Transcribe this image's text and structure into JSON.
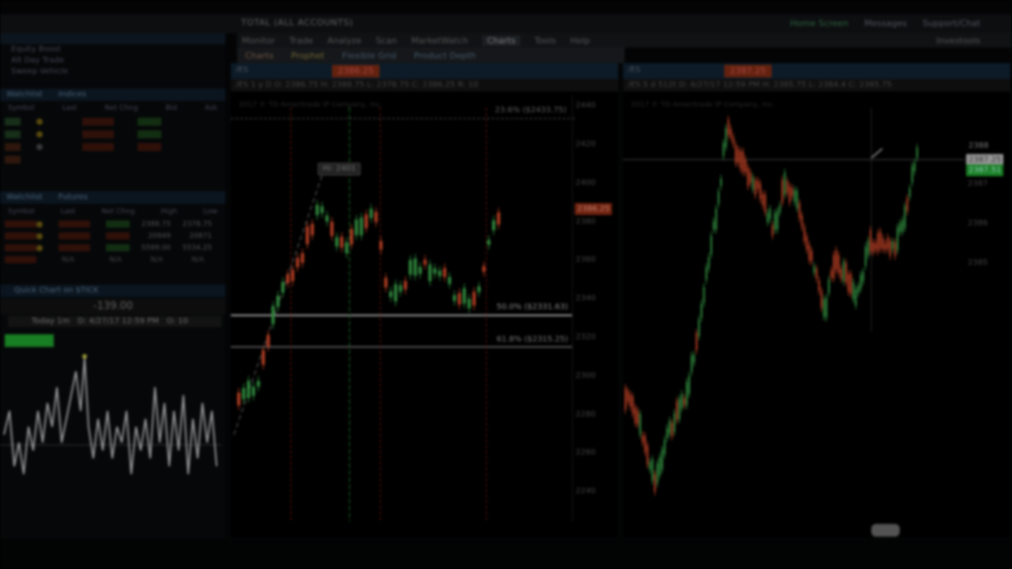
{
  "topbar": {
    "account": "TOTAL (ALL ACCOUNTS)",
    "home": "Home Screen",
    "messages": "Messages",
    "support": "Support/Chat"
  },
  "mainnav": {
    "items": [
      "Monitor",
      "Trade",
      "Analyze",
      "Scan",
      "MarketWatch",
      "Charts",
      "Tools",
      "Help"
    ],
    "active": "Charts",
    "right": "Investools"
  },
  "subnav": {
    "items": [
      "Charts",
      "Prophet",
      "Flexible Grid",
      "Product Depth"
    ]
  },
  "leftpanel": {
    "top_rows": [
      "Equity Boost",
      "Alt Day Trade",
      "Sweep Vehicle"
    ],
    "watchlist1": {
      "title": "Watchlist",
      "filter": "Indices",
      "columns": [
        "Symbol",
        "Last",
        "Net Chng",
        "Bid",
        "Ask"
      ]
    },
    "watchlist2": {
      "title": "Watchlist",
      "filter": "Futures",
      "columns": [
        "Symbol",
        "Last",
        "Net Chng",
        "High",
        "Low"
      ],
      "rows": [
        {
          "high": "2388.75",
          "low": "2378.75"
        },
        {
          "high": "20949",
          "low": "20871"
        },
        {
          "high": "5599.00",
          "low": "5534.25"
        },
        {
          "high": "N/A",
          "low": "N/A"
        }
      ],
      "na": "N/A"
    },
    "quick_chart": {
      "title": "Quick Chart on $TICK",
      "value": "-139.00",
      "info_period": "Today 1m",
      "info_date": "D: 4/27/17 12:59 PM",
      "info_open": "O: 10"
    }
  },
  "chart1": {
    "symbol": "/ES",
    "price": "2386.25",
    "info": "/ES 1 y D    O: 2386.75    H: 2388.75    L: 2378.75    C: 2386.25    R: 10",
    "copyright": "2017 © TD Ameritrade IP Company, Inc.",
    "high_flag": "Hi: 2401",
    "price_tag": "2386.25",
    "fib": [
      {
        "label": "23.6%  ($2433.75)"
      },
      {
        "label": "50.0%  ($2331.63)"
      },
      {
        "label": "61.8%  ($2315.25)"
      }
    ],
    "y_ticks": [
      "2440",
      "2420",
      "2400",
      "2380",
      "2360",
      "2340",
      "2320",
      "2300",
      "2280",
      "2260",
      "2240"
    ]
  },
  "chart2": {
    "symbol": "/ES",
    "price": "2387.25",
    "info": "/ES 5 d 512t    D: 4/27/17 12:59 PM    H: 2385.75    L: 2384.4    C: 2385.75",
    "copyright": "2017 © TD Ameritrade IP Company, Inc.",
    "price_tags": [
      "2388",
      "2387.25",
      "2387.51"
    ],
    "y_ticks": [
      "2388",
      "2387",
      "2386",
      "2385"
    ]
  },
  "colors": {
    "up": "#3aa64a",
    "down": "#d84a2a",
    "accent": "#1e9a2b"
  }
}
